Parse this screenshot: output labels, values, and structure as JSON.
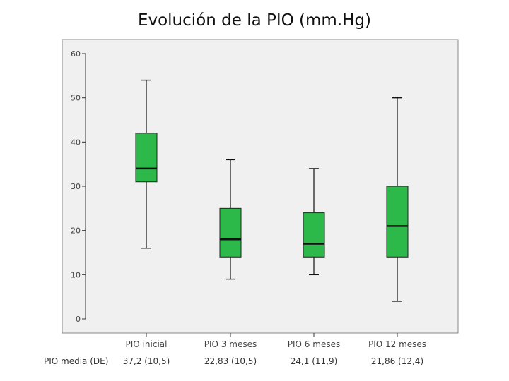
{
  "chart_data": {
    "type": "boxplot",
    "title": "Evolución de la PIO (mm.Hg)",
    "xlabel": "",
    "ylabel": "",
    "ylim": [
      0,
      60
    ],
    "yticks": [
      0,
      10,
      20,
      30,
      40,
      50,
      60
    ],
    "grid": false,
    "categories": [
      "PIO inicial",
      "PIO 3 meses",
      "PIO 6 meses",
      "PIO 12 meses"
    ],
    "boxes": [
      {
        "min": 16,
        "q1": 31,
        "median": 34,
        "q3": 42,
        "max": 54
      },
      {
        "min": 9,
        "q1": 14,
        "median": 18,
        "q3": 25,
        "max": 36
      },
      {
        "min": 10,
        "q1": 14,
        "median": 17,
        "q3": 24,
        "max": 34
      },
      {
        "min": 4,
        "q1": 14,
        "median": 21,
        "q3": 30,
        "max": 50
      }
    ],
    "box_color": "#2db84a",
    "panel_color": "#f0f0f0",
    "footer": {
      "label": "PIO media (DE)",
      "values": [
        "37,2 (10,5)",
        "22,83 (10,5)",
        "24,1 (11,9)",
        "21,86 (12,4)"
      ]
    }
  }
}
